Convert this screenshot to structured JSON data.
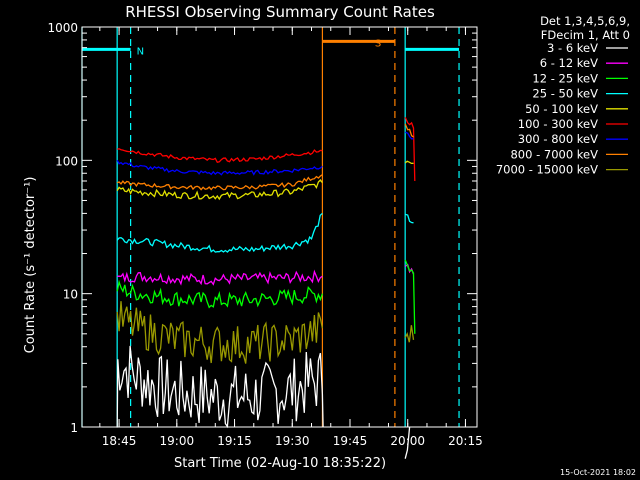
{
  "chart_data": {
    "type": "line",
    "title": "RHESSI Observing Summary Count Rates",
    "xlabel": "Start Time (02-Aug-10 18:35:22)",
    "ylabel": "Count Rate (s⁻¹ detector⁻¹)",
    "legend_header": [
      "Det 1,3,4,5,6,9,",
      "FDecim 1, Att 0"
    ],
    "footer": "15-Oct-2021 18:02",
    "y_scale": "log",
    "ylim": [
      1,
      1000
    ],
    "y_ticks": [
      {
        "value": 1,
        "label": "1"
      },
      {
        "value": 10,
        "label": "10"
      },
      {
        "value": 100,
        "label": "100"
      },
      {
        "value": 1000,
        "label": "1000"
      }
    ],
    "xlim": [
      "18:35:22",
      "20:18:00"
    ],
    "x_ticks": [
      "18:45",
      "19:00",
      "19:15",
      "19:30",
      "19:45",
      "20:00",
      "20:15"
    ],
    "series": [
      {
        "name": "3 - 6 keV",
        "color": "#ffffff",
        "segments": [
          [
            [
              "18:44:30",
              1
            ],
            [
              "18:44:40",
              3
            ],
            [
              "18:50",
              2.4
            ],
            [
              "18:55",
              2
            ],
            [
              "19:00",
              1.8
            ],
            [
              "19:10",
              1.7
            ],
            [
              "19:20",
              1.7
            ],
            [
              "19:30",
              1.9
            ],
            [
              "19:37:50",
              2.3
            ],
            [
              "19:38",
              1
            ]
          ],
          [
            [
              "19:59:20",
              1
            ],
            [
              "20:00:30",
              1
            ]
          ]
        ]
      },
      {
        "name": "6 - 12 keV",
        "color": "#ff00ff",
        "segments": [
          [
            [
              "18:44:30",
              13
            ],
            [
              "18:50",
              13.5
            ],
            [
              "19:00",
              13
            ],
            [
              "19:10",
              12.8
            ],
            [
              "19:20",
              13
            ],
            [
              "19:30",
              13.2
            ],
            [
              "19:37:50",
              13.5
            ]
          ],
          [
            [
              "19:59:20",
              17
            ],
            [
              "20:00",
              16
            ],
            [
              "20:01:30",
              14
            ]
          ]
        ]
      },
      {
        "name": "12 - 25 keV",
        "color": "#00ff00",
        "segments": [
          [
            [
              "18:44:30",
              11
            ],
            [
              "18:50",
              10
            ],
            [
              "19:00",
              9.2
            ],
            [
              "19:10",
              8.8
            ],
            [
              "19:20",
              9
            ],
            [
              "19:30",
              9.5
            ],
            [
              "19:37:50",
              10
            ]
          ],
          [
            [
              "19:59:20",
              18
            ],
            [
              "20:00",
              17
            ],
            [
              "20:01:30",
              14
            ],
            [
              "20:01:50",
              5
            ]
          ]
        ]
      },
      {
        "name": "25 - 50 keV",
        "color": "#00ffff",
        "segments": [
          [
            [
              "18:44:30",
              26
            ],
            [
              "18:50",
              25
            ],
            [
              "19:00",
              23
            ],
            [
              "19:10",
              21.5
            ],
            [
              "19:20",
              21.5
            ],
            [
              "19:30",
              23
            ],
            [
              "19:35",
              26
            ],
            [
              "19:37:50",
              40
            ]
          ],
          [
            [
              "19:59:20",
              38
            ],
            [
              "20:00",
              37
            ],
            [
              "20:01:30",
              34
            ]
          ]
        ]
      },
      {
        "name": "50 - 100 keV",
        "color": "#e0e000",
        "segments": [
          [
            [
              "18:44:30",
              60
            ],
            [
              "18:50",
              58
            ],
            [
              "19:00",
              55
            ],
            [
              "19:10",
              54
            ],
            [
              "19:20",
              55
            ],
            [
              "19:30",
              58
            ],
            [
              "19:37:50",
              68
            ]
          ],
          [
            [
              "19:59:20",
              100
            ],
            [
              "20:01:30",
              95
            ]
          ]
        ]
      },
      {
        "name": "100 - 300 keV",
        "color": "#ff0000",
        "segments": [
          [
            [
              "18:44:30",
              124
            ],
            [
              "18:50",
              115
            ],
            [
              "19:00",
              105
            ],
            [
              "19:10",
              100
            ],
            [
              "19:20",
              102
            ],
            [
              "19:30",
              110
            ],
            [
              "19:37:50",
              118
            ]
          ],
          [
            [
              "19:59:20",
              205
            ],
            [
              "20:00",
              195
            ],
            [
              "20:01:30",
              180
            ],
            [
              "20:01:50",
              70
            ]
          ]
        ]
      },
      {
        "name": "300 - 800 keV",
        "color": "#0000ff",
        "segments": [
          [
            [
              "18:44:30",
              98
            ],
            [
              "18:50",
              90
            ],
            [
              "19:00",
              83
            ],
            [
              "19:10",
              80
            ],
            [
              "19:20",
              81
            ],
            [
              "19:30",
              84
            ],
            [
              "19:37:50",
              90
            ]
          ],
          [
            [
              "19:59:20",
              165
            ],
            [
              "20:00",
              155
            ],
            [
              "20:01:30",
              145
            ]
          ]
        ]
      },
      {
        "name": "800 - 7000 keV",
        "color": "#ff8000",
        "segments": [
          [
            [
              "18:44:30",
              68
            ],
            [
              "18:50",
              66
            ],
            [
              "19:00",
              63
            ],
            [
              "19:10",
              62
            ],
            [
              "19:20",
              63
            ],
            [
              "19:30",
              66
            ],
            [
              "19:37:50",
              78
            ]
          ],
          [
            [
              "19:59:20",
              185
            ],
            [
              "20:00",
              175
            ],
            [
              "20:01:30",
              150
            ]
          ]
        ]
      },
      {
        "name": "7000 - 15000 keV",
        "color": "#999900",
        "segments": [
          [
            [
              "18:44:30",
              6.5
            ],
            [
              "18:50",
              5.5
            ],
            [
              "19:00",
              4.5
            ],
            [
              "19:10",
              4.2
            ],
            [
              "19:20",
              4.2
            ],
            [
              "19:30",
              4.5
            ],
            [
              "19:37:50",
              5.5
            ]
          ],
          [
            [
              "19:59:20",
              5
            ],
            [
              "20:01:30",
              4.5
            ]
          ]
        ]
      }
    ],
    "flags": [
      {
        "label": "N",
        "color": "#00ffff",
        "level": 680,
        "start": "18:35:22",
        "end": "18:48:00",
        "line_at": "18:48:00"
      },
      {
        "label": "",
        "color": "#00ffff",
        "level": 680,
        "start": "19:59:20",
        "end": "20:13:20",
        "line_at": "20:13:20"
      },
      {
        "label": "S",
        "color": "#ff8000",
        "level": 780,
        "start": "19:37:50",
        "end": "19:56:40",
        "line_at": "19:56:40"
      }
    ],
    "gaps": [
      {
        "color": "#00ffff",
        "start": "18:35:22",
        "end": "18:44:30"
      },
      {
        "color": "#00ffff",
        "start": "19:59:20",
        "end": "19:59:20"
      },
      {
        "color": "#ff8000",
        "start": "19:37:50",
        "end": "19:37:50"
      }
    ],
    "grid": false,
    "legend_position": "right"
  }
}
